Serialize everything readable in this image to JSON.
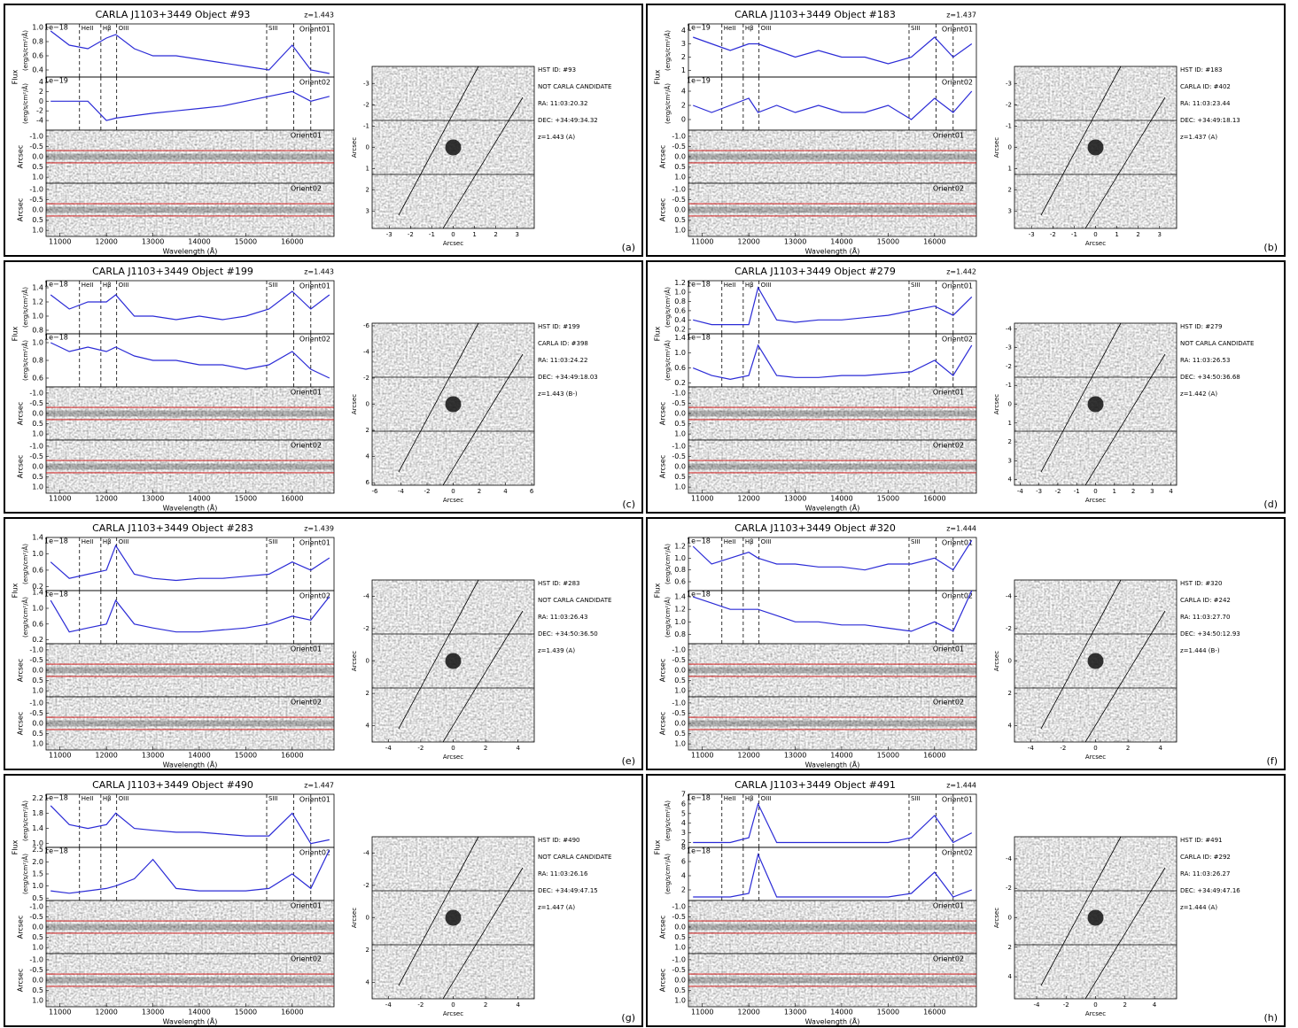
{
  "figure": {
    "xlim": [
      10700,
      16900
    ],
    "wavelength_ticks": [
      11000,
      12000,
      13000,
      14000,
      15000,
      16000
    ],
    "wavelength_label": "Wavelength (Å)",
    "flux_label": "Flux",
    "flux_unit": "(erg/s/cm²/Å)",
    "arcsec_label": "Arcsec",
    "orient_labels": [
      "Orient01",
      "Orient02"
    ],
    "slit_lim": [
      -1.3,
      1.3
    ],
    "slit_ticks": [
      {
        "value": -1,
        "label": "-1.0"
      },
      -0.5,
      {
        "value": 0,
        "label": "0.0"
      },
      0.5,
      {
        "value": 1,
        "label": "1.0"
      }
    ],
    "aperture": [
      -0.3,
      0.3
    ],
    "lines": [
      {
        "label": "HeII",
        "value": 11420
      },
      {
        "label": "Hβ",
        "value": 11880
      },
      {
        "label": "OIII",
        "value": 12220
      },
      {
        "label": "SIII",
        "value": 15450
      },
      {
        "value": 16030
      },
      {
        "value": 16400
      }
    ],
    "spectrum_x": [
      10800,
      11200,
      11600,
      12000,
      12200,
      12600,
      13000,
      13500,
      14000,
      14500,
      15000,
      15500,
      16000,
      16400,
      16800
    ],
    "panels": [
      {
        "title": "CARLA J1103+3449 Object #93",
        "z": "z=1.443",
        "label": "(a)",
        "info": [
          "HST ID: #93",
          "NOT CARLA CANDIDATE",
          "RA: 11:03:20.32",
          "DEC: +34:49:34.32",
          "z=1.443 (A)"
        ],
        "flux": [
          {
            "scale": "1e−18",
            "ylim": [
              0.3,
              1.05
            ],
            "yticks": [
              0.4,
              0.6,
              0.8,
              {
                "value": 1,
                "label": "1.0"
              }
            ],
            "values": [
              0.95,
              0.75,
              0.7,
              0.85,
              0.9,
              0.7,
              0.6,
              0.6,
              0.55,
              0.5,
              0.45,
              0.4,
              0.75,
              0.4,
              0.35
            ]
          },
          {
            "scale": "1e−19",
            "ylim": [
              -6,
              5
            ],
            "yticks": [
              -4,
              -2,
              0,
              2,
              4
            ],
            "values": [
              0,
              0,
              0,
              -4,
              -3.5,
              -3,
              -2.5,
              -2,
              -1.5,
              -1,
              0,
              1,
              2,
              0,
              1
            ]
          }
        ],
        "stamp_lim": [
          -3.8,
          3.8
        ],
        "stamp_ticks": [
          -3,
          -2,
          -1,
          0,
          1,
          2,
          3
        ]
      },
      {
        "title": "CARLA J1103+3449 Object #183",
        "z": "z=1.437",
        "label": "(b)",
        "info": [
          "HST ID: #183",
          "CARLA ID: #402",
          "RA: 11:03:23.44",
          "DEC: +34:49:18.13",
          "z=1.437 (A)"
        ],
        "flux": [
          {
            "scale": "1e−19",
            "ylim": [
              0.5,
              4.5
            ],
            "yticks": [
              1,
              2,
              3,
              4
            ],
            "values": [
              3.5,
              3,
              2.5,
              3,
              3,
              2.5,
              2,
              2.5,
              2,
              2,
              1.5,
              2,
              3.5,
              2,
              3
            ]
          },
          {
            "scale": "1e−19",
            "ylim": [
              -1.5,
              6
            ],
            "yticks": [
              0,
              2,
              4
            ],
            "values": [
              2,
              1,
              2,
              3,
              1,
              2,
              1,
              2,
              1,
              1,
              2,
              0,
              3,
              1,
              4
            ]
          }
        ],
        "stamp_lim": [
          -3.8,
          3.8
        ],
        "stamp_ticks": [
          -3,
          -2,
          -1,
          0,
          1,
          2,
          3
        ]
      },
      {
        "title": "CARLA J1103+3449 Object #199",
        "z": "z=1.443",
        "label": "(c)",
        "info": [
          "HST ID: #199",
          "CARLA ID: #398",
          "RA: 11:03:24.22",
          "DEC: +34:49:18.03",
          "z=1.443 (B-)"
        ],
        "flux": [
          {
            "scale": "1e−18",
            "ylim": [
              0.75,
              1.5
            ],
            "yticks": [
              0.8,
              {
                "value": 1,
                "label": "1.0"
              },
              1.2,
              1.4
            ],
            "values": [
              1.3,
              1.1,
              1.2,
              1.2,
              1.3,
              1.0,
              1.0,
              0.95,
              1.0,
              0.95,
              1.0,
              1.1,
              1.35,
              1.1,
              1.3
            ]
          },
          {
            "scale": "1e−18",
            "ylim": [
              0.5,
              1.1
            ],
            "yticks": [
              0.6,
              0.8,
              {
                "value": 1,
                "label": "1.0"
              }
            ],
            "values": [
              1.0,
              0.9,
              0.95,
              0.9,
              0.95,
              0.85,
              0.8,
              0.8,
              0.75,
              0.75,
              0.7,
              0.75,
              0.9,
              0.7,
              0.6
            ]
          }
        ],
        "stamp_lim": [
          -6.2,
          6.2
        ],
        "stamp_ticks": [
          -6,
          -4,
          -2,
          0,
          2,
          4,
          6
        ]
      },
      {
        "title": "CARLA J1103+3449 Object #279",
        "z": "z=1.442",
        "label": "(d)",
        "info": [
          "HST ID: #279",
          "NOT CARLA CANDIDATE",
          "RA: 11:03:26.53",
          "DEC: +34:50:36.68",
          "z=1.442 (A)"
        ],
        "flux": [
          {
            "scale": "1e−18",
            "ylim": [
              0.1,
              1.25
            ],
            "yticks": [
              0.2,
              0.4,
              0.6,
              0.8,
              {
                "value": 1,
                "label": "1.0"
              },
              1.2
            ],
            "values": [
              0.4,
              0.3,
              0.3,
              0.3,
              1.1,
              0.4,
              0.35,
              0.4,
              0.4,
              0.45,
              0.5,
              0.6,
              0.7,
              0.5,
              0.9
            ]
          },
          {
            "scale": "1e−18",
            "ylim": [
              0.1,
              1.5
            ],
            "yticks": [
              0.2,
              0.6,
              {
                "value": 1,
                "label": "1.0"
              },
              1.4
            ],
            "values": [
              0.6,
              0.4,
              0.3,
              0.4,
              1.2,
              0.4,
              0.35,
              0.35,
              0.4,
              0.4,
              0.45,
              0.5,
              0.8,
              0.4,
              1.2
            ]
          }
        ],
        "stamp_lim": [
          -4.3,
          4.3
        ],
        "stamp_ticks": [
          -4,
          -3,
          -2,
          -1,
          0,
          1,
          2,
          3,
          4
        ]
      },
      {
        "title": "CARLA J1103+3449 Object #283",
        "z": "z=1.439",
        "label": "(e)",
        "info": [
          "HST ID: #283",
          "NOT CARLA CANDIDATE",
          "RA: 11:03:26.43",
          "DEC: +34:50:36.50",
          "z=1.439 (A)"
        ],
        "flux": [
          {
            "scale": "1e−18",
            "ylim": [
              0.1,
              1.4
            ],
            "yticks": [
              0.2,
              0.6,
              {
                "value": 1,
                "label": "1.0"
              },
              1.4
            ],
            "values": [
              0.8,
              0.4,
              0.5,
              0.6,
              1.2,
              0.5,
              0.4,
              0.35,
              0.4,
              0.4,
              0.45,
              0.5,
              0.8,
              0.6,
              0.9
            ]
          },
          {
            "scale": "1e−18",
            "ylim": [
              0.1,
              1.45
            ],
            "yticks": [
              0.2,
              0.6,
              {
                "value": 1,
                "label": "1.0"
              },
              1.4
            ],
            "values": [
              1.2,
              0.4,
              0.5,
              0.6,
              1.2,
              0.6,
              0.5,
              0.4,
              0.4,
              0.45,
              0.5,
              0.6,
              0.8,
              0.7,
              1.3
            ]
          }
        ],
        "stamp_lim": [
          -5,
          5
        ],
        "stamp_ticks": [
          -4,
          -2,
          0,
          2,
          4
        ]
      },
      {
        "title": "CARLA J1103+3449 Object #320",
        "z": "z=1.444",
        "label": "(f)",
        "info": [
          "HST ID: #320",
          "CARLA ID: #242",
          "RA: 11:03:27.70",
          "DEC: +34:50:12.93",
          "z=1.444 (B-)"
        ],
        "flux": [
          {
            "scale": "1e−18",
            "ylim": [
              0.45,
              1.35
            ],
            "yticks": [
              0.6,
              0.8,
              {
                "value": 1,
                "label": "1.0"
              },
              1.2
            ],
            "values": [
              1.2,
              0.9,
              1.0,
              1.1,
              1.0,
              0.9,
              0.9,
              0.85,
              0.85,
              0.8,
              0.9,
              0.9,
              1.0,
              0.8,
              1.3
            ]
          },
          {
            "scale": "1e−18",
            "ylim": [
              0.65,
              1.5
            ],
            "yticks": [
              0.8,
              {
                "value": 1,
                "label": "1.0"
              },
              1.2,
              1.4
            ],
            "values": [
              1.4,
              1.3,
              1.2,
              1.2,
              1.2,
              1.1,
              1.0,
              1.0,
              0.95,
              0.95,
              0.9,
              0.85,
              1.0,
              0.85,
              1.5
            ]
          }
        ],
        "stamp_lim": [
          -5,
          5
        ],
        "stamp_ticks": [
          -4,
          -2,
          0,
          2,
          4
        ]
      },
      {
        "title": "CARLA J1103+3449 Object #490",
        "z": "z=1.447",
        "label": "(g)",
        "info": [
          "HST ID: #490",
          "NOT CARLA CANDIDATE",
          "RA: 11:03:26.16",
          "DEC: +34:49:47.15",
          "z=1.447 (A)"
        ],
        "flux": [
          {
            "scale": "1e−18",
            "ylim": [
              0.9,
              2.3
            ],
            "yticks": [
              {
                "value": 1,
                "label": "1.0"
              },
              1.4,
              1.8,
              2.2
            ],
            "values": [
              2.0,
              1.5,
              1.4,
              1.5,
              1.8,
              1.4,
              1.35,
              1.3,
              1.3,
              1.25,
              1.2,
              1.2,
              1.8,
              1.0,
              1.1
            ]
          },
          {
            "scale": "1e−18",
            "ylim": [
              0.4,
              2.6
            ],
            "yticks": [
              0.5,
              {
                "value": 1,
                "label": "1.0"
              },
              1.5,
              {
                "value": 2,
                "label": "2.0"
              },
              2.5
            ],
            "values": [
              0.8,
              0.7,
              0.8,
              0.9,
              1.0,
              1.3,
              2.1,
              0.9,
              0.8,
              0.8,
              0.8,
              0.9,
              1.5,
              0.9,
              2.5
            ]
          }
        ],
        "stamp_lim": [
          -5,
          5
        ],
        "stamp_ticks": [
          -4,
          -2,
          0,
          2,
          4
        ]
      },
      {
        "title": "CARLA J1103+3449 Object #491",
        "z": "z=1.444",
        "label": "(h)",
        "info": [
          "HST ID: #491",
          "CARLA ID: #292",
          "RA: 11:03:26.27",
          "DEC: +34:49:47.16",
          "z=1.444 (A)"
        ],
        "flux": [
          {
            "scale": "1e−18",
            "ylim": [
              1.5,
              7
            ],
            "yticks": [
              2,
              3,
              4,
              5,
              6,
              7
            ],
            "values": [
              2,
              2,
              2,
              2.5,
              6,
              2,
              2,
              2,
              2,
              2,
              2,
              2.5,
              4.8,
              2,
              3
            ]
          },
          {
            "scale": "1e−18",
            "ylim": [
              0.5,
              8
            ],
            "yticks": [
              2,
              4,
              6,
              8
            ],
            "values": [
              1,
              1,
              1,
              1.5,
              7,
              1,
              1,
              1,
              1,
              1,
              1,
              1.5,
              4.5,
              1,
              2
            ]
          }
        ],
        "stamp_lim": [
          -5.5,
          5.5
        ],
        "stamp_ticks": [
          -4,
          -2,
          0,
          2,
          4
        ]
      }
    ]
  }
}
